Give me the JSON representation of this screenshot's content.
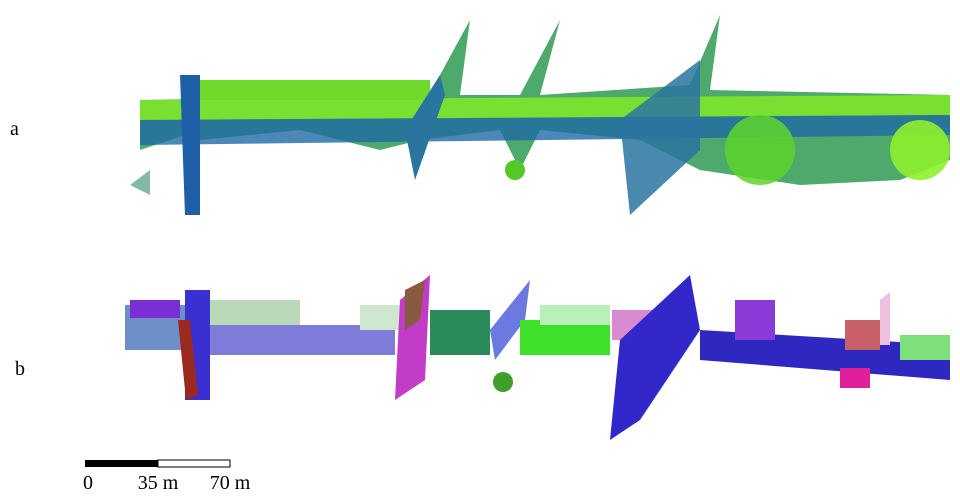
{
  "panels": [
    {
      "label": "a"
    },
    {
      "label": "b"
    }
  ],
  "scale_bar": {
    "ticks": [
      "0",
      "35 m",
      "70 m"
    ]
  }
}
